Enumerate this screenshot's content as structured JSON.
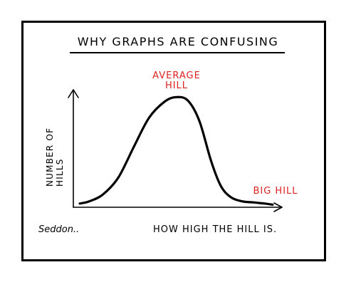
{
  "chart_data": {
    "type": "line",
    "title": "WHY GRAPHS ARE CONFUSING",
    "xlabel": "HOW HIGH THE HILL IS.",
    "ylabel": [
      "NUMBER OF",
      "HILLS"
    ],
    "grid": false,
    "xlim": [
      0,
      100
    ],
    "ylim": [
      0,
      100
    ],
    "series": [
      {
        "x": [
          0,
          5,
          12,
          20,
          28,
          36,
          44,
          50,
          56,
          62,
          68,
          73,
          78,
          84,
          90,
          96,
          100
        ],
        "y": [
          2,
          4,
          10,
          25,
          52,
          78,
          92,
          96,
          93,
          75,
          40,
          18,
          8,
          4,
          3,
          2,
          1
        ],
        "color": "#000000"
      }
    ],
    "annotations": [
      {
        "text_lines": [
          "AVERAGE",
          "HILL"
        ],
        "color": "#dd2222",
        "at_x": 50
      },
      {
        "text_lines": [
          "BIG HILL"
        ],
        "color": "#dd2222",
        "at_x": 94
      }
    ],
    "signature": "Seddon.."
  }
}
